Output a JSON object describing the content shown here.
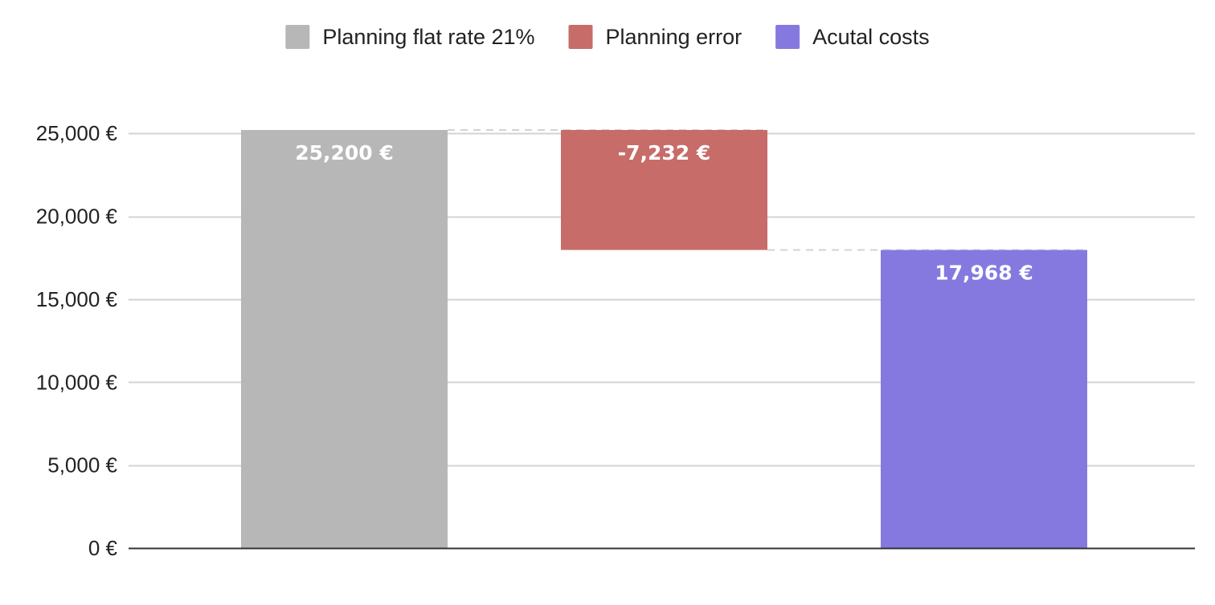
{
  "chart_data": {
    "type": "bar",
    "subtype": "waterfall",
    "categories": [
      "Planning flat rate 21%",
      "Planning error",
      "Acutal costs"
    ],
    "values": [
      25200,
      -7232,
      17968
    ],
    "data_labels": [
      "25,200 €",
      "-7,232 €",
      "17,968 €"
    ],
    "series": [
      {
        "name": "Planning flat rate 21%",
        "value": 25200,
        "kind": "total",
        "color": "#b7b7b7"
      },
      {
        "name": "Planning error",
        "value": -7232,
        "kind": "delta",
        "color": "#c76c69"
      },
      {
        "name": "Acutal costs",
        "value": 17968,
        "kind": "total",
        "color": "#8579e0"
      }
    ],
    "legend": {
      "position": "top-center",
      "items": [
        "Planning flat rate 21%",
        "Planning error",
        "Acutal costs"
      ]
    },
    "y_ticks": [
      0,
      5000,
      10000,
      15000,
      20000,
      25000
    ],
    "y_tick_labels": [
      "0 €",
      "5,000 €",
      "10,000 €",
      "15,000 €",
      "20,000 €",
      "25,000 €"
    ],
    "ylim": [
      0,
      25200
    ],
    "grid": true,
    "connectors": "dashed",
    "title": "",
    "xlabel": "",
    "ylabel": "",
    "colors": {
      "grid": "#d3d3d3",
      "axis": "#333333",
      "connector": "#d3d3d3"
    }
  }
}
